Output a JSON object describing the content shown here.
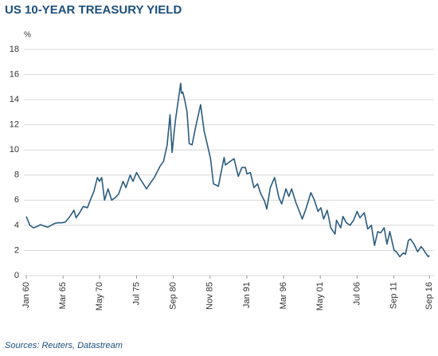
{
  "chart_data": {
    "type": "line",
    "title": "US 10-YEAR TREASURY YIELD",
    "ylabel": "%",
    "source": "Sources: Reuters, Datastream",
    "color": "#2b5c7e",
    "grid": true,
    "xlim": [
      1960,
      2016.75
    ],
    "ylim": [
      0,
      18
    ],
    "yticks": [
      0,
      2,
      4,
      6,
      8,
      10,
      12,
      14,
      16,
      18
    ],
    "xticks": [
      {
        "value": 1960.0,
        "label": "Jan 60"
      },
      {
        "value": 1965.17,
        "label": "Mar 65"
      },
      {
        "value": 1970.33,
        "label": "May 70"
      },
      {
        "value": 1975.5,
        "label": "Jul 75"
      },
      {
        "value": 1980.67,
        "label": "Sep 80"
      },
      {
        "value": 1985.83,
        "label": "Nov 85"
      },
      {
        "value": 1991.0,
        "label": "Jan 91"
      },
      {
        "value": 1996.17,
        "label": "Mar 96"
      },
      {
        "value": 2001.33,
        "label": "May 01"
      },
      {
        "value": 2006.5,
        "label": "Jul 06"
      },
      {
        "value": 2011.67,
        "label": "Sep 11"
      },
      {
        "value": 2016.67,
        "label": "Sep 16"
      }
    ],
    "x": [
      1960.0,
      1960.5,
      1961.0,
      1961.5,
      1962.0,
      1962.5,
      1963.0,
      1963.5,
      1964.0,
      1964.5,
      1965.0,
      1965.5,
      1966.0,
      1966.7,
      1967.0,
      1967.5,
      1968.0,
      1968.6,
      1969.0,
      1969.5,
      1970.0,
      1970.3,
      1970.6,
      1971.0,
      1971.5,
      1972.0,
      1972.5,
      1973.0,
      1973.6,
      1974.0,
      1974.6,
      1975.0,
      1975.5,
      1976.0,
      1976.9,
      1977.5,
      1978.0,
      1978.8,
      1979.3,
      1979.8,
      1980.2,
      1980.5,
      1980.8,
      1981.0,
      1981.7,
      1981.8,
      1982.0,
      1982.3,
      1982.6,
      1982.9,
      1983.3,
      1983.8,
      1984.5,
      1985.0,
      1985.5,
      1985.9,
      1986.3,
      1986.7,
      1987.0,
      1987.8,
      1988.0,
      1988.7,
      1989.2,
      1989.8,
      1990.3,
      1990.8,
      1991.0,
      1991.5,
      1992.0,
      1992.5,
      1992.9,
      1993.5,
      1993.8,
      1994.3,
      1994.9,
      1995.5,
      1995.9,
      1996.5,
      1996.9,
      1997.3,
      1997.9,
      1998.8,
      1999.3,
      2000.0,
      2000.5,
      2001.0,
      2001.4,
      2001.8,
      2002.3,
      2002.8,
      2003.4,
      2003.6,
      2004.2,
      2004.5,
      2005.0,
      2005.5,
      2006.0,
      2006.5,
      2006.9,
      2007.5,
      2008.0,
      2008.5,
      2008.95,
      2009.4,
      2009.8,
      2010.3,
      2010.7,
      2011.1,
      2011.7,
      2012.0,
      2012.5,
      2013.0,
      2013.3,
      2013.7,
      2014.0,
      2014.5,
      2015.0,
      2015.5,
      2015.8,
      2016.0,
      2016.5,
      2016.67
    ],
    "values": [
      4.7,
      4.0,
      3.8,
      3.9,
      4.05,
      3.95,
      3.85,
      4.0,
      4.15,
      4.2,
      4.2,
      4.25,
      4.6,
      5.2,
      4.6,
      5.0,
      5.5,
      5.4,
      6.0,
      6.7,
      7.8,
      7.5,
      7.8,
      6.0,
      6.9,
      6.0,
      6.2,
      6.5,
      7.5,
      7.0,
      8.0,
      7.5,
      8.2,
      7.7,
      6.9,
      7.4,
      7.8,
      8.7,
      9.1,
      10.4,
      12.8,
      9.8,
      11.5,
      12.5,
      15.3,
      14.5,
      14.6,
      13.9,
      13.0,
      10.5,
      10.4,
      11.8,
      13.6,
      11.5,
      10.3,
      9.3,
      7.3,
      7.2,
      7.1,
      9.4,
      8.8,
      9.1,
      9.3,
      7.9,
      8.6,
      8.6,
      8.1,
      8.2,
      7.0,
      7.3,
      6.6,
      5.9,
      5.3,
      7.0,
      7.8,
      6.2,
      5.7,
      6.9,
      6.3,
      6.9,
      5.8,
      4.5,
      5.3,
      6.6,
      6.0,
      5.1,
      5.4,
      4.5,
      5.2,
      3.8,
      3.3,
      4.4,
      3.8,
      4.7,
      4.2,
      4.0,
      4.4,
      5.1,
      4.6,
      5.0,
      3.7,
      4.0,
      2.4,
      3.5,
      3.4,
      3.8,
      2.5,
      3.5,
      2.0,
      1.9,
      1.5,
      1.8,
      1.7,
      2.8,
      2.9,
      2.5,
      1.9,
      2.3,
      2.1,
      1.9,
      1.5,
      1.6
    ]
  }
}
